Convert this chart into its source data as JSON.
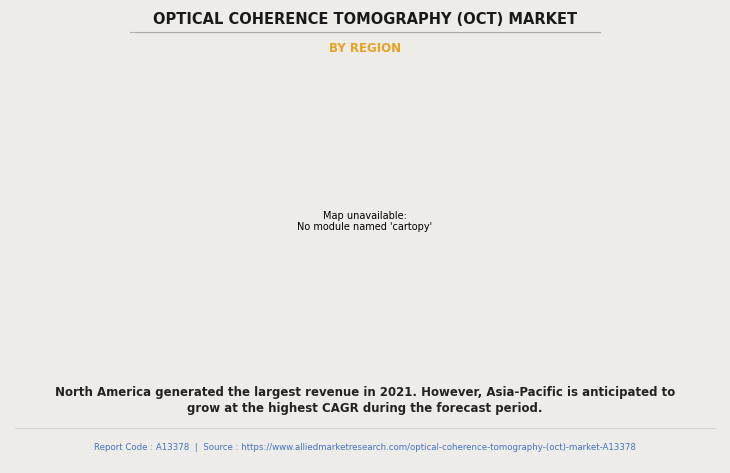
{
  "title": "OPTICAL COHERENCE TOMOGRAPHY (OCT) MARKET",
  "subtitle": "BY REGION",
  "subtitle_color": "#E8A020",
  "background_color": "#eeece8",
  "body_text_line1": "North America generated the largest revenue in 2021. However, Asia-Pacific is anticipated to",
  "body_text_line2": "grow at the highest CAGR during the forecast period.",
  "footer_text": "Report Code : A13378  |  Source : https://www.alliedmarketresearch.com/optical-coherence-tomography-(oct)-market-A13378",
  "footer_color": "#4472C4",
  "map_land_color": "#8dc894",
  "map_border_color": "#7ab4cc",
  "map_shadow_color": "#888888",
  "north_america_color": "#e8e8e8",
  "north_america_border": "#7ab4cc",
  "title_line_color": "#aaaaaa",
  "body_text_color": "#222222",
  "fig_width": 7.3,
  "fig_height": 4.73,
  "dpi": 100
}
